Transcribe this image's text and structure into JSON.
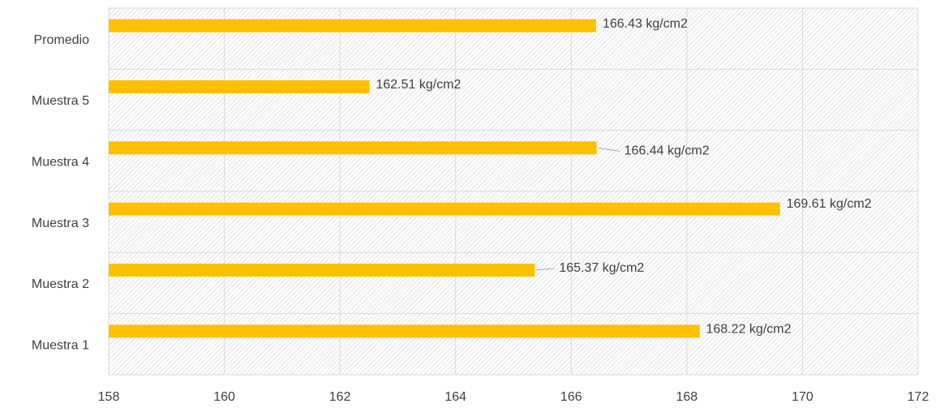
{
  "chart_data": {
    "type": "bar",
    "orientation": "horizontal",
    "categories": [
      "Muestra 1",
      "Muestra 2",
      "Muestra 3",
      "Muestra 4",
      "Muestra 5",
      "Promedio"
    ],
    "values": [
      168.22,
      165.37,
      169.61,
      166.44,
      162.51,
      166.43
    ],
    "value_labels": [
      "168.22 kg/cm2",
      "165.37 kg/cm2",
      "169.61 kg/cm2",
      "166.44 kg/cm2",
      "162.51 kg/cm2",
      "166.43 kg/cm2"
    ],
    "color": "#ffc000",
    "xlim": [
      158,
      172
    ],
    "xticks": [
      158,
      160,
      162,
      164,
      166,
      168,
      170,
      172
    ],
    "grid": true
  }
}
